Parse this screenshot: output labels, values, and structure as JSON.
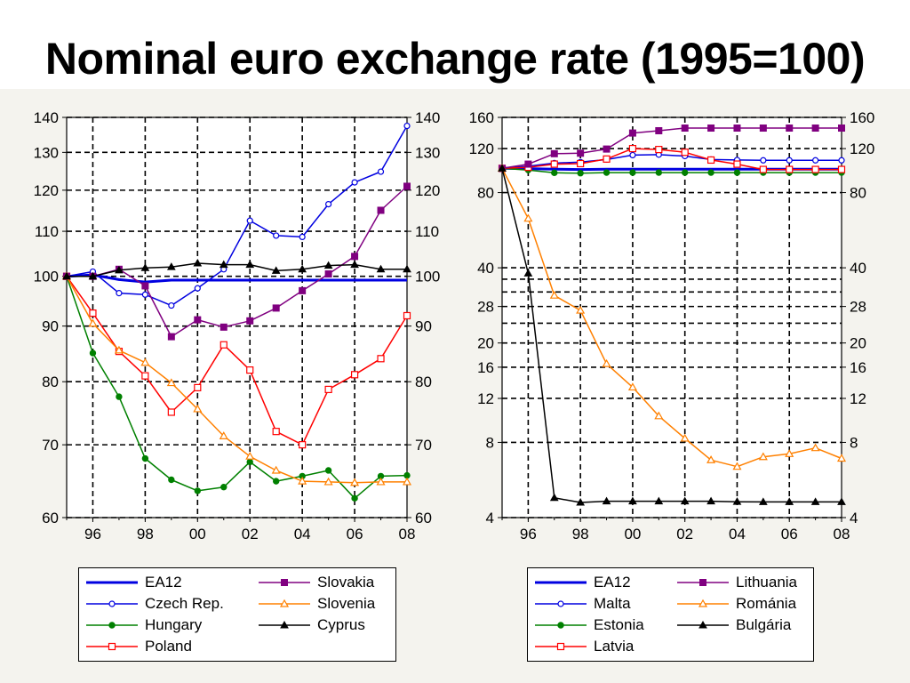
{
  "title": "Nominal euro exchange rate (1995=100)",
  "chart_data": [
    {
      "type": "line",
      "panel": "left",
      "scale": "log",
      "ylim": [
        60,
        140
      ],
      "yticks": [
        60,
        70,
        80,
        90,
        100,
        110,
        120,
        130,
        140
      ],
      "xlim": [
        1995,
        2008
      ],
      "xtick_values": [
        1996,
        1998,
        2000,
        2002,
        2004,
        2006,
        2008
      ],
      "xtick_labels": [
        "96",
        "98",
        "00",
        "02",
        "04",
        "06",
        "08"
      ],
      "grid": true,
      "x": [
        1995,
        1996,
        1997,
        1998,
        1999,
        2000,
        2001,
        2002,
        2003,
        2004,
        2005,
        2006,
        2007,
        2008
      ],
      "series": [
        {
          "name": "EA12",
          "color": "#0000e0",
          "marker": "none",
          "width": 3,
          "values": [
            100,
            100.3,
            99.3,
            98.8,
            99.2,
            99.2,
            99.2,
            99.2,
            99.2,
            99.2,
            99.2,
            99.2,
            99.2,
            99.2
          ]
        },
        {
          "name": "Czech Rep.",
          "color": "#0000e0",
          "marker": "circle",
          "values": [
            100,
            101,
            96.5,
            96.2,
            94,
            97.5,
            101.5,
            112.5,
            109,
            108.7,
            116.5,
            122,
            124.8,
            137.5
          ]
        },
        {
          "name": "Hungary",
          "color": "#008000",
          "marker": "dot",
          "values": [
            100,
            85,
            77.5,
            68,
            65,
            63.5,
            64,
            67.5,
            64.8,
            65.5,
            66.3,
            62.5,
            65.5,
            65.6
          ]
        },
        {
          "name": "Poland",
          "color": "#ff0000",
          "marker": "square",
          "values": [
            100,
            92.5,
            85.3,
            81,
            75,
            79,
            86.5,
            82,
            72,
            70,
            78.7,
            81.2,
            84,
            92
          ]
        },
        {
          "name": "Slovakia",
          "color": "#800080",
          "marker": "square-filled",
          "values": [
            100,
            100,
            101.5,
            98,
            88,
            91.2,
            89.8,
            91,
            93.5,
            97,
            100.5,
            104.3,
            115,
            121
          ]
        },
        {
          "name": "Slovenia",
          "color": "#ff8000",
          "marker": "triangle",
          "values": [
            100,
            90.5,
            85.5,
            83.3,
            79.8,
            75.5,
            71.3,
            68.3,
            66.3,
            64.8,
            64.7,
            64.6,
            64.7,
            64.7
          ]
        },
        {
          "name": "Cyprus",
          "color": "#000000",
          "marker": "triangle-filled",
          "values": [
            100,
            100,
            101.3,
            101.8,
            102,
            102.8,
            102.5,
            102.5,
            101.2,
            101.5,
            102.3,
            102.5,
            101.5,
            101.5
          ]
        }
      ],
      "legend": {
        "placement": "below",
        "columns": 2
      }
    },
    {
      "type": "line",
      "panel": "right",
      "scale": "log",
      "ylim": [
        4,
        160
      ],
      "yticks": [
        4,
        8,
        12,
        16,
        20,
        28,
        40,
        80,
        120,
        160
      ],
      "extra_gridlines": [
        24,
        32,
        36
      ],
      "xlim": [
        1995,
        2008
      ],
      "xtick_values": [
        1996,
        1998,
        2000,
        2002,
        2004,
        2006,
        2008
      ],
      "xtick_labels": [
        "96",
        "98",
        "00",
        "02",
        "04",
        "06",
        "08"
      ],
      "grid": true,
      "x": [
        1995,
        1996,
        1997,
        1998,
        1999,
        2000,
        2001,
        2002,
        2003,
        2004,
        2005,
        2006,
        2007,
        2008
      ],
      "series": [
        {
          "name": "EA12",
          "color": "#0000e0",
          "marker": "none",
          "width": 3,
          "values": [
            100,
            99.8,
            99.2,
            99,
            99.2,
            99.2,
            99.2,
            99.2,
            99.2,
            99.2,
            99.2,
            99.2,
            99.2,
            99.2
          ]
        },
        {
          "name": "Malta",
          "color": "#0000e0",
          "marker": "circle",
          "values": [
            100,
            102,
            105,
            106,
            108.5,
            113,
            113.5,
            112,
            108.5,
            108,
            107.7,
            107.7,
            107.7,
            107.7
          ]
        },
        {
          "name": "Estonia",
          "color": "#008000",
          "marker": "dot",
          "values": [
            100,
            98.5,
            96,
            95.7,
            96.2,
            96.2,
            96.2,
            96.2,
            96.2,
            96.2,
            96.2,
            96.2,
            96.2,
            96.2
          ]
        },
        {
          "name": "Latvia",
          "color": "#ff0000",
          "marker": "square",
          "values": [
            100,
            101,
            104,
            104.5,
            109,
            120,
            119,
            116,
            108,
            104,
            99,
            99,
            99,
            99
          ]
        },
        {
          "name": "Lithuania",
          "color": "#800080",
          "marker": "square-filled",
          "values": [
            100,
            104,
            114.5,
            115,
            119.5,
            138.5,
            141.5,
            145,
            145,
            145,
            145,
            145,
            145,
            145
          ]
        },
        {
          "name": "Románia",
          "color": "#ff8000",
          "marker": "triangle",
          "values": [
            100,
            63,
            31,
            27,
            16.5,
            13.3,
            10.2,
            8.3,
            6.8,
            6.4,
            7,
            7.2,
            7.6,
            6.9
          ]
        },
        {
          "name": "Bulgária",
          "color": "#000000",
          "marker": "triangle-filled",
          "values": [
            100,
            38,
            4.8,
            4.6,
            4.65,
            4.65,
            4.65,
            4.65,
            4.65,
            4.63,
            4.62,
            4.62,
            4.62,
            4.62
          ]
        }
      ],
      "legend": {
        "placement": "below",
        "columns": 2
      }
    }
  ]
}
